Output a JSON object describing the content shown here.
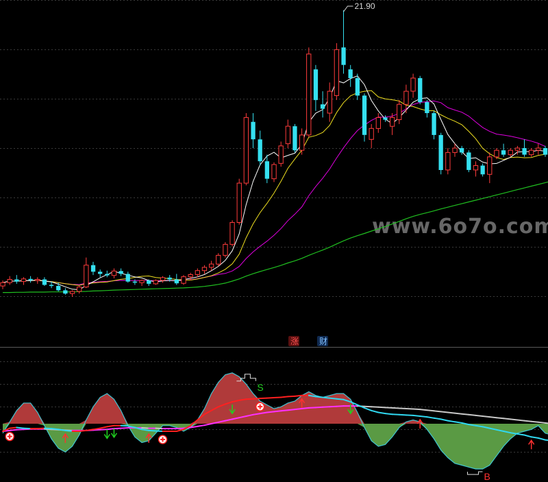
{
  "chart_data": [
    {
      "type": "candlestick",
      "peak_label": "21.90",
      "watermark": "www.6o7o.com",
      "colors": {
        "up": "#ff3b3b",
        "down": "#35e0f0",
        "ma5": "#ffffff",
        "ma10": "#f0e020",
        "ma20": "#e000e0",
        "ma60": "#20c020"
      },
      "candles": [
        {
          "o": 9.3,
          "h": 9.55,
          "l": 9.15,
          "c": 9.45
        },
        {
          "o": 9.45,
          "h": 9.75,
          "l": 9.35,
          "c": 9.6
        },
        {
          "o": 9.6,
          "h": 9.8,
          "l": 9.4,
          "c": 9.5
        },
        {
          "o": 9.5,
          "h": 9.7,
          "l": 9.35,
          "c": 9.62
        },
        {
          "o": 9.62,
          "h": 9.75,
          "l": 9.45,
          "c": 9.55
        },
        {
          "o": 9.55,
          "h": 9.7,
          "l": 9.4,
          "c": 9.6
        },
        {
          "o": 9.6,
          "h": 9.7,
          "l": 9.3,
          "c": 9.35
        },
        {
          "o": 9.35,
          "h": 9.5,
          "l": 9.2,
          "c": 9.3
        },
        {
          "o": 9.3,
          "h": 9.45,
          "l": 9.05,
          "c": 9.1
        },
        {
          "o": 9.1,
          "h": 9.2,
          "l": 8.9,
          "c": 8.95
        },
        {
          "o": 8.95,
          "h": 9.1,
          "l": 8.8,
          "c": 9.05
        },
        {
          "o": 9.05,
          "h": 9.3,
          "l": 8.95,
          "c": 9.25
        },
        {
          "o": 9.25,
          "h": 10.6,
          "l": 9.2,
          "c": 10.25
        },
        {
          "o": 10.25,
          "h": 10.4,
          "l": 9.8,
          "c": 9.95
        },
        {
          "o": 9.95,
          "h": 10.05,
          "l": 9.7,
          "c": 9.85
        },
        {
          "o": 9.85,
          "h": 10.0,
          "l": 9.7,
          "c": 9.78
        },
        {
          "o": 9.78,
          "h": 10.1,
          "l": 9.65,
          "c": 9.98
        },
        {
          "o": 9.98,
          "h": 10.1,
          "l": 9.75,
          "c": 9.85
        },
        {
          "o": 9.85,
          "h": 9.95,
          "l": 9.45,
          "c": 9.5
        },
        {
          "o": 9.5,
          "h": 9.6,
          "l": 9.35,
          "c": 9.45
        },
        {
          "o": 9.45,
          "h": 9.6,
          "l": 9.3,
          "c": 9.55
        },
        {
          "o": 9.55,
          "h": 9.6,
          "l": 9.3,
          "c": 9.4
        },
        {
          "o": 9.4,
          "h": 9.6,
          "l": 9.35,
          "c": 9.55
        },
        {
          "o": 9.55,
          "h": 9.75,
          "l": 9.45,
          "c": 9.68
        },
        {
          "o": 9.68,
          "h": 9.8,
          "l": 9.5,
          "c": 9.6
        },
        {
          "o": 9.6,
          "h": 9.85,
          "l": 9.35,
          "c": 9.42
        },
        {
          "o": 9.42,
          "h": 9.8,
          "l": 9.35,
          "c": 9.72
        },
        {
          "o": 9.72,
          "h": 9.9,
          "l": 9.55,
          "c": 9.82
        },
        {
          "o": 9.82,
          "h": 10.1,
          "l": 9.7,
          "c": 10.0
        },
        {
          "o": 10.0,
          "h": 10.25,
          "l": 9.85,
          "c": 10.15
        },
        {
          "o": 10.15,
          "h": 10.45,
          "l": 10.0,
          "c": 10.3
        },
        {
          "o": 10.3,
          "h": 10.8,
          "l": 10.2,
          "c": 10.7
        },
        {
          "o": 10.7,
          "h": 11.3,
          "l": 10.6,
          "c": 11.2
        },
        {
          "o": 11.2,
          "h": 12.3,
          "l": 11.1,
          "c": 12.2
        },
        {
          "o": 12.2,
          "h": 14.2,
          "l": 12.1,
          "c": 14.0
        },
        {
          "o": 14.0,
          "h": 17.2,
          "l": 13.9,
          "c": 17.0
        },
        {
          "o": 16.8,
          "h": 17.2,
          "l": 15.6,
          "c": 16.0
        },
        {
          "o": 16.0,
          "h": 16.4,
          "l": 14.8,
          "c": 15.0
        },
        {
          "o": 15.0,
          "h": 15.3,
          "l": 14.0,
          "c": 14.2
        },
        {
          "o": 14.2,
          "h": 14.95,
          "l": 14.05,
          "c": 14.85
        },
        {
          "o": 14.9,
          "h": 15.9,
          "l": 14.75,
          "c": 15.7
        },
        {
          "o": 15.8,
          "h": 16.9,
          "l": 15.6,
          "c": 16.6
        },
        {
          "o": 16.6,
          "h": 16.7,
          "l": 15.4,
          "c": 15.5
        },
        {
          "o": 15.5,
          "h": 16.5,
          "l": 15.3,
          "c": 16.2
        },
        {
          "o": 16.2,
          "h": 20.2,
          "l": 16.1,
          "c": 19.9
        },
        {
          "o": 19.2,
          "h": 19.4,
          "l": 17.3,
          "c": 17.8
        },
        {
          "o": 17.6,
          "h": 18.2,
          "l": 17.0,
          "c": 17.4
        },
        {
          "o": 17.2,
          "h": 18.6,
          "l": 16.8,
          "c": 18.2
        },
        {
          "o": 18.0,
          "h": 20.4,
          "l": 17.8,
          "c": 20.1
        },
        {
          "o": 20.2,
          "h": 21.9,
          "l": 19.0,
          "c": 19.4
        },
        {
          "o": 19.2,
          "h": 19.4,
          "l": 18.4,
          "c": 18.8
        },
        {
          "o": 18.8,
          "h": 19.0,
          "l": 17.8,
          "c": 18.0
        },
        {
          "o": 18.0,
          "h": 18.1,
          "l": 15.9,
          "c": 16.2
        },
        {
          "o": 16.0,
          "h": 16.7,
          "l": 15.6,
          "c": 16.5
        },
        {
          "o": 16.5,
          "h": 17.2,
          "l": 16.3,
          "c": 17.0
        },
        {
          "o": 17.0,
          "h": 17.1,
          "l": 16.8,
          "c": 16.9
        },
        {
          "o": 16.6,
          "h": 17.2,
          "l": 16.2,
          "c": 17.0
        },
        {
          "o": 16.9,
          "h": 17.8,
          "l": 16.7,
          "c": 17.6
        },
        {
          "o": 17.6,
          "h": 18.5,
          "l": 17.2,
          "c": 18.2
        },
        {
          "o": 18.2,
          "h": 19.0,
          "l": 17.9,
          "c": 18.8
        },
        {
          "o": 18.8,
          "h": 18.9,
          "l": 17.6,
          "c": 17.7
        },
        {
          "o": 17.7,
          "h": 17.8,
          "l": 17.0,
          "c": 17.2
        },
        {
          "o": 17.2,
          "h": 17.3,
          "l": 16.0,
          "c": 16.2
        },
        {
          "o": 16.2,
          "h": 16.3,
          "l": 14.4,
          "c": 14.6
        },
        {
          "o": 14.6,
          "h": 15.6,
          "l": 14.4,
          "c": 15.4
        },
        {
          "o": 15.4,
          "h": 15.8,
          "l": 15.2,
          "c": 15.6
        },
        {
          "o": 15.6,
          "h": 15.7,
          "l": 15.3,
          "c": 15.4
        },
        {
          "o": 15.4,
          "h": 15.5,
          "l": 14.5,
          "c": 14.6
        },
        {
          "o": 14.6,
          "h": 15.0,
          "l": 14.3,
          "c": 14.8
        },
        {
          "o": 14.8,
          "h": 14.9,
          "l": 14.3,
          "c": 14.4
        },
        {
          "o": 14.4,
          "h": 15.4,
          "l": 14.0,
          "c": 15.2
        },
        {
          "o": 15.2,
          "h": 15.6,
          "l": 15.1,
          "c": 15.5
        },
        {
          "o": 15.5,
          "h": 15.8,
          "l": 15.2,
          "c": 15.3
        },
        {
          "o": 15.3,
          "h": 15.6,
          "l": 15.2,
          "c": 15.5
        },
        {
          "o": 15.5,
          "h": 15.7,
          "l": 15.3,
          "c": 15.6
        },
        {
          "o": 15.6,
          "h": 16.0,
          "l": 15.2,
          "c": 15.3
        },
        {
          "o": 15.3,
          "h": 15.6,
          "l": 15.2,
          "c": 15.5
        },
        {
          "o": 15.5,
          "h": 15.8,
          "l": 15.3,
          "c": 15.6
        },
        {
          "o": 15.6,
          "h": 15.7,
          "l": 15.2,
          "c": 15.3
        }
      ],
      "ma60": [
        9.0,
        9.0,
        9.01,
        9.01,
        9.02,
        9.02,
        9.02,
        9.03,
        9.03,
        9.03,
        9.03,
        9.04,
        9.05,
        9.07,
        9.08,
        9.09,
        9.11,
        9.12,
        9.13,
        9.14,
        9.15,
        9.16,
        9.17,
        9.18,
        9.19,
        9.2,
        9.21,
        9.23,
        9.25,
        9.28,
        9.32,
        9.37,
        9.43,
        9.52,
        9.62,
        9.75,
        9.86,
        9.96,
        10.05,
        10.14,
        10.24,
        10.35,
        10.45,
        10.56,
        10.7,
        10.82,
        10.94,
        11.07,
        11.22,
        11.36,
        11.49,
        11.6,
        11.7,
        11.81,
        11.91,
        12.02,
        12.13,
        12.25,
        12.37,
        12.48,
        12.57,
        12.65,
        12.73,
        12.82,
        12.9,
        12.98,
        13.06,
        13.14,
        13.22,
        13.3,
        13.38,
        13.46,
        13.54,
        13.62,
        13.7,
        13.78,
        13.86,
        13.94,
        14.02,
        14.1
      ]
    },
    {
      "type": "indicator",
      "tags": [
        {
          "text": "涨",
          "color": "#ff5050",
          "bg": "#5a1010"
        },
        {
          "text": "财",
          "color": "#80c0ff",
          "bg": "#102a50"
        }
      ],
      "sell_letter": "S",
      "buy_letter": "B",
      "osc": [
        -0.25,
        0.05,
        0.35,
        0.55,
        0.55,
        0.3,
        -0.05,
        -0.4,
        -0.65,
        -0.75,
        -0.6,
        -0.3,
        0.1,
        0.45,
        0.7,
        0.8,
        0.65,
        0.35,
        -0.05,
        -0.35,
        -0.5,
        -0.45,
        -0.25,
        -0.05,
        -0.05,
        -0.1,
        -0.2,
        -0.1,
        0.1,
        0.4,
        0.8,
        1.1,
        1.3,
        1.35,
        1.25,
        1.05,
        0.8,
        0.6,
        0.5,
        0.4,
        0.45,
        0.55,
        0.6,
        0.75,
        0.85,
        0.75,
        0.7,
        0.75,
        0.8,
        0.8,
        0.65,
        0.3,
        -0.1,
        -0.45,
        -0.6,
        -0.55,
        -0.35,
        -0.1,
        0.05,
        0.1,
        0.05,
        -0.15,
        -0.4,
        -0.7,
        -0.9,
        -1.05,
        -1.1,
        -1.15,
        -1.2,
        -1.2,
        -1.1,
        -0.85,
        -0.6,
        -0.4,
        -0.25,
        -0.2,
        -0.15,
        -0.05,
        -0.25,
        -0.3
      ],
      "fast": [
        -0.2,
        -0.12,
        -0.1,
        -0.12,
        -0.13,
        -0.13,
        -0.12,
        -0.13,
        -0.15,
        -0.18,
        -0.2,
        -0.2,
        -0.18,
        -0.15,
        -0.12,
        -0.08,
        -0.05,
        -0.05,
        -0.06,
        -0.1,
        -0.15,
        -0.18,
        -0.19,
        -0.2,
        -0.2,
        -0.2,
        -0.15,
        -0.05,
        0.1,
        0.25,
        0.35,
        0.45,
        0.52,
        0.58,
        0.62,
        0.65,
        0.66,
        0.67,
        0.68,
        0.69,
        0.7,
        0.72,
        0.73,
        0.75,
        0.75,
        0.72,
        0.7,
        0.68,
        0.66,
        0.64,
        0.58,
        0.5,
        0.42,
        0.35,
        0.3,
        0.27,
        0.25,
        0.24,
        0.23,
        0.22,
        0.2,
        0.18,
        0.15,
        0.12,
        0.08,
        0.05,
        0.02,
        -0.02,
        -0.05,
        -0.08,
        -0.12,
        -0.16,
        -0.2,
        -0.24,
        -0.27,
        -0.3,
        -0.35,
        -0.38,
        -0.43,
        -0.45
      ],
      "slow": [
        -0.2,
        -0.18,
        -0.16,
        -0.15,
        -0.14,
        -0.14,
        -0.14,
        -0.15,
        -0.16,
        -0.17,
        -0.18,
        -0.18,
        -0.18,
        -0.17,
        -0.16,
        -0.15,
        -0.13,
        -0.12,
        -0.11,
        -0.11,
        -0.11,
        -0.12,
        -0.12,
        -0.13,
        -0.13,
        -0.13,
        -0.12,
        -0.1,
        -0.07,
        -0.04,
        0.0,
        0.04,
        0.08,
        0.12,
        0.16,
        0.2,
        0.24,
        0.27,
        0.3,
        0.32,
        0.34,
        0.36,
        0.38,
        0.4,
        0.42,
        0.43,
        0.44,
        0.45,
        0.46,
        0.47,
        0.47,
        0.47,
        0.46,
        0.45,
        0.44,
        0.43,
        0.42,
        0.41,
        0.4,
        0.39,
        0.38,
        0.36,
        0.34,
        0.32,
        0.3,
        0.28,
        0.26,
        0.24,
        0.22,
        0.2,
        0.18,
        0.16,
        0.14,
        0.12,
        0.1,
        0.08,
        0.06,
        0.04,
        0.02,
        0.0
      ],
      "up_arrows": [
        9,
        21,
        43,
        60,
        76
      ],
      "down_arrows": [
        15,
        16,
        33,
        50
      ],
      "circle_marks": [
        1,
        23,
        37
      ],
      "sell_index": 44,
      "buy_index": 71,
      "colors": {
        "pos": "#b03a3a",
        "neg": "#5a9a44",
        "fast_up": "#ff2020",
        "fast_down": "#30d8f0",
        "slow_up": "#ff30ff",
        "slow_down": "#c8c8c8"
      }
    }
  ]
}
